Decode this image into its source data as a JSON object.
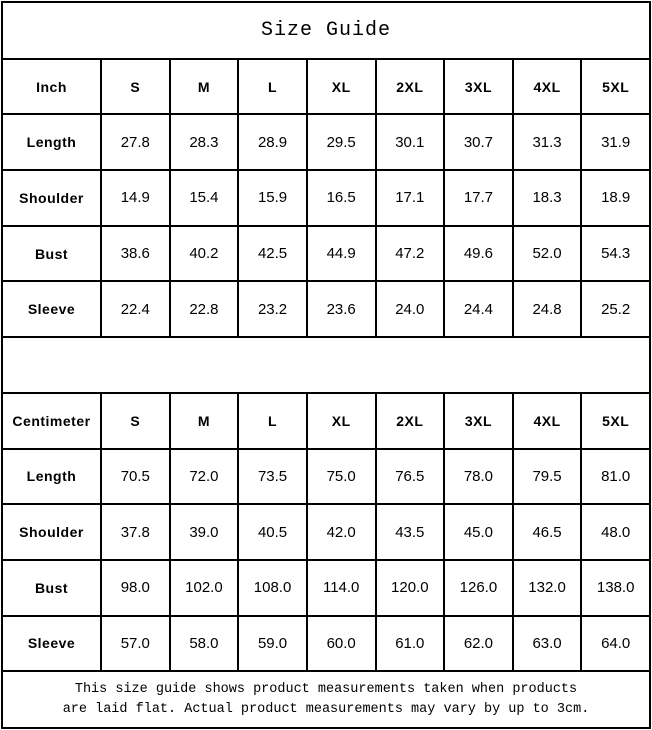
{
  "title": "Size Guide",
  "tables": [
    {
      "unit_label": "Inch",
      "size_headers": [
        "S",
        "M",
        "L",
        "XL",
        "2XL",
        "3XL",
        "4XL",
        "5XL"
      ],
      "rows": [
        {
          "label": "Length",
          "values": [
            "27.8",
            "28.3",
            "28.9",
            "29.5",
            "30.1",
            "30.7",
            "31.3",
            "31.9"
          ]
        },
        {
          "label": "Shoulder",
          "values": [
            "14.9",
            "15.4",
            "15.9",
            "16.5",
            "17.1",
            "17.7",
            "18.3",
            "18.9"
          ]
        },
        {
          "label": "Bust",
          "values": [
            "38.6",
            "40.2",
            "42.5",
            "44.9",
            "47.2",
            "49.6",
            "52.0",
            "54.3"
          ]
        },
        {
          "label": "Sleeve",
          "values": [
            "22.4",
            "22.8",
            "23.2",
            "23.6",
            "24.0",
            "24.4",
            "24.8",
            "25.2"
          ]
        }
      ]
    },
    {
      "unit_label": "Centimeter",
      "size_headers": [
        "S",
        "M",
        "L",
        "XL",
        "2XL",
        "3XL",
        "4XL",
        "5XL"
      ],
      "rows": [
        {
          "label": "Length",
          "values": [
            "70.5",
            "72.0",
            "73.5",
            "75.0",
            "76.5",
            "78.0",
            "79.5",
            "81.0"
          ]
        },
        {
          "label": "Shoulder",
          "values": [
            "37.8",
            "39.0",
            "40.5",
            "42.0",
            "43.5",
            "45.0",
            "46.5",
            "48.0"
          ]
        },
        {
          "label": "Bust",
          "values": [
            "98.0",
            "102.0",
            "108.0",
            "114.0",
            "120.0",
            "126.0",
            "132.0",
            "138.0"
          ]
        },
        {
          "label": "Sleeve",
          "values": [
            "57.0",
            "58.0",
            "59.0",
            "60.0",
            "61.0",
            "62.0",
            "63.0",
            "64.0"
          ]
        }
      ]
    }
  ],
  "footer": {
    "lines": [
      "This size guide shows product measurements taken when products",
      "are laid flat. Actual product measurements may vary by up to 3cm."
    ]
  },
  "colors": {
    "border": "#000000",
    "background": "#ffffff",
    "text": "#000000"
  }
}
